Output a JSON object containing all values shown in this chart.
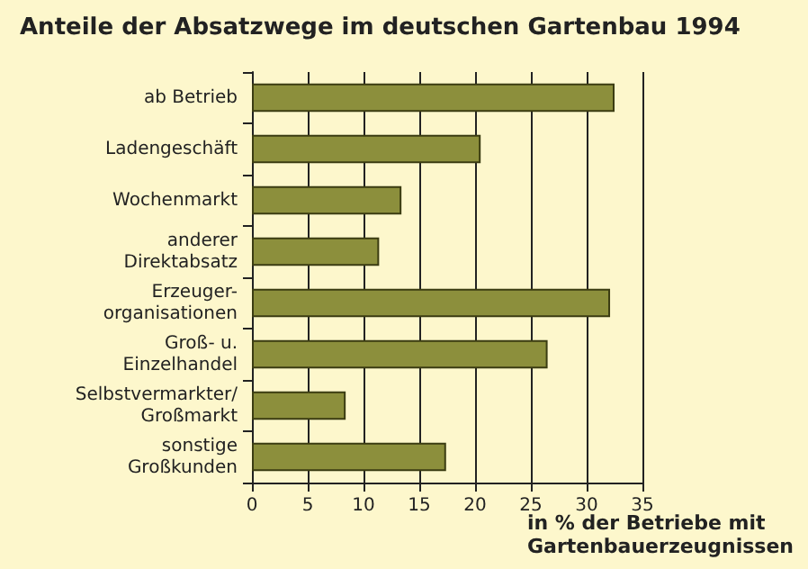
{
  "chart_data": {
    "type": "bar",
    "orientation": "horizontal",
    "title": "Anteile der Absatzwege im deutschen Gartenbau 1994",
    "categories": [
      "ab Betrieb",
      "Ladengeschäft",
      "Wochenmarkt",
      "anderer\nDirektabsatz",
      "Erzeuger-\norganisationen",
      "Groß- u.\nEinzelhandel",
      "Selbstvermarkter/\nGroßmarkt",
      "sonstige\nGroßkunden"
    ],
    "values": [
      32.5,
      20.5,
      13.4,
      11.4,
      32.1,
      26.5,
      8.4,
      17.4
    ],
    "color": "#8c8f3c",
    "xlabel": "in % der Betriebe mit\nGartenbauerzeugnissen",
    "xlim": [
      0,
      35
    ],
    "xticks": [
      0,
      5,
      10,
      15,
      20,
      25,
      30,
      35
    ],
    "grid": "x"
  }
}
